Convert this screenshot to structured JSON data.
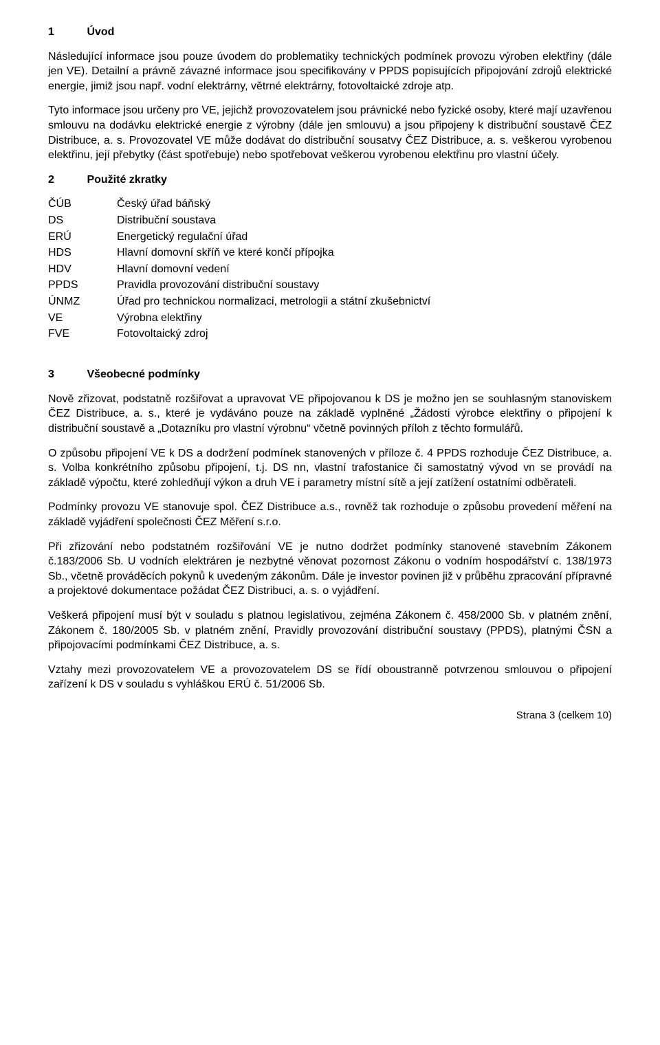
{
  "section1": {
    "num": "1",
    "title": "Úvod",
    "p1": "Následující informace jsou pouze úvodem do problematiky technických podmínek provozu výroben elektřiny (dále jen VE). Detailní a právně závazné informace jsou specifikovány v PPDS popisujících připojování zdrojů elektrické energie, jimiž jsou např. vodní elektrárny, větrné elektrárny, fotovoltaické zdroje atp.",
    "p2": "Tyto informace jsou určeny pro VE, jejichž provozovatelem jsou právnické nebo fyzické osoby, které mají uzavřenou smlouvu na dodávku elektrické energie z výrobny (dále jen smlouvu) a jsou připojeny k distribuční soustavě ČEZ Distribuce, a. s. Provozovatel VE může dodávat do distribuční sousatvy ČEZ Distribuce, a. s. veškerou vyrobenou elektřinu, její přebytky (část spotřebuje) nebo spotřebovat veškerou vyrobenou elektřinu pro vlastní účely."
  },
  "section2": {
    "num": "2",
    "title": "Použité zkratky",
    "defs": [
      {
        "abbr": "ČÚB",
        "desc": "Český úřad báňský"
      },
      {
        "abbr": "DS",
        "desc": "Distribuční soustava"
      },
      {
        "abbr": "ERÚ",
        "desc": "Energetický regulační úřad"
      },
      {
        "abbr": "HDS",
        "desc": "Hlavní domovní skříň ve které končí přípojka"
      },
      {
        "abbr": "HDV",
        "desc": "Hlavní domovní vedení"
      },
      {
        "abbr": "PPDS",
        "desc": "Pravidla provozování distribuční soustavy"
      },
      {
        "abbr": "ÚNMZ",
        "desc": "Úřad pro technickou normalizaci, metrologii a státní zkušebnictví"
      },
      {
        "abbr": "VE",
        "desc": "Výrobna elektřiny"
      },
      {
        "abbr": "FVE",
        "desc": "Fotovoltaický zdroj"
      }
    ]
  },
  "section3": {
    "num": "3",
    "title": "Všeobecné podmínky",
    "p1": "Nově zřizovat, podstatně rozšiřovat a upravovat VE připojovanou k DS je možno jen se souhlasným stanoviskem ČEZ Distribuce, a. s., které je vydáváno pouze na základě vyplněné „Žádosti výrobce elektřiny o připojení k distribuční soustavě a „Dotazníku pro vlastní výrobnu“ včetně povinných příloh z těchto formulářů.",
    "p2": "O způsobu připojení VE k DS a dodržení podmínek stanovených v příloze č. 4 PPDS rozhoduje ČEZ Distribuce, a. s. Volba konkrétního způsobu připojení, t.j. DS nn, vlastní trafostanice či samostatný vývod vn se provádí na základě výpočtu, které zohledňují výkon a druh VE i parametry místní sítě a její zatížení ostatními odběrateli.",
    "p3": "Podmínky provozu VE stanovuje spol. ČEZ Distribuce a.s., rovněž tak rozhoduje o způsobu provedení  měření na základě vyjádření společnosti ČEZ Měření s.r.o.",
    "p4": "Při zřizování nebo podstatném rozšiřování VE je nutno dodržet podmínky stanovené stavebním Zákonem č.183/2006 Sb. U vodních elektráren je nezbytné věnovat pozornost Zákonu o vodním hospodářství c. 138/1973 Sb., včetně prováděcích pokynů k uvedeným zákonům. Dále je investor povinen již v průběhu zpracování přípravné a projektové dokumentace požádat ČEZ Distribuci, a. s. o vyjádření.",
    "p5": "Veškerá připojení musí být v souladu s platnou legislativou, zejména Zákonem č. 458/2000 Sb. v platném znění, Zákonem č. 180/2005 Sb. v platném znění,  Pravidly provozování distribuční soustavy (PPDS), platnými ČSN a připojovacími podmínkami ČEZ Distribuce, a. s.",
    "p6": "Vztahy mezi provozovatelem VE a provozovatelem DS se řídí oboustranně potvrzenou smlouvou o připojení zařízení k DS v souladu s vyhláškou ERÚ č. 51/2006 Sb."
  },
  "footer": "Strana 3 (celkem 10)"
}
